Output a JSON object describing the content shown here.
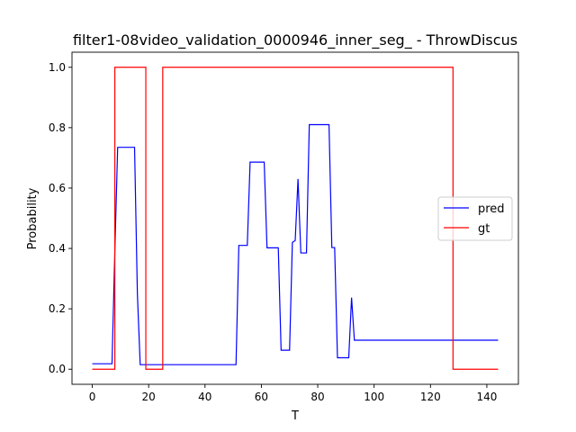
{
  "chart_data": {
    "type": "line",
    "title": "filter1-08video_validation_0000946_inner_seg_ - ThrowDiscus",
    "xlabel": "T",
    "ylabel": "Probability",
    "xlim": [
      -7.2,
      151.2
    ],
    "ylim": [
      -0.05,
      1.05
    ],
    "xticks": [
      0,
      20,
      40,
      60,
      80,
      100,
      120,
      140
    ],
    "yticks": [
      0.0,
      0.2,
      0.4,
      0.6,
      0.8,
      1.0
    ],
    "ytick_labels": [
      "0.0",
      "0.2",
      "0.4",
      "0.6",
      "0.8",
      "1.0"
    ],
    "grid": false,
    "legend_position": "center-right",
    "series": [
      {
        "name": "pred",
        "color": "#0000ff",
        "x": [
          0,
          7,
          8,
          9,
          15,
          16,
          17,
          51,
          52,
          55,
          56,
          61,
          62,
          66,
          67,
          70,
          71,
          72,
          73,
          74,
          76,
          77,
          84,
          85,
          86,
          87,
          91,
          92,
          93,
          144
        ],
        "y": [
          0.018,
          0.018,
          0.39,
          0.735,
          0.735,
          0.25,
          0.015,
          0.015,
          0.41,
          0.41,
          0.686,
          0.686,
          0.402,
          0.402,
          0.063,
          0.063,
          0.42,
          0.426,
          0.63,
          0.385,
          0.385,
          0.81,
          0.81,
          0.403,
          0.403,
          0.038,
          0.038,
          0.237,
          0.096,
          0.096
        ]
      },
      {
        "name": "gt",
        "color": "#ff0000",
        "step": true,
        "x": [
          0,
          8,
          8,
          19,
          19,
          25,
          25,
          128,
          128,
          144
        ],
        "y": [
          0,
          0,
          1,
          1,
          0,
          0,
          1,
          1,
          0,
          0
        ]
      }
    ]
  }
}
